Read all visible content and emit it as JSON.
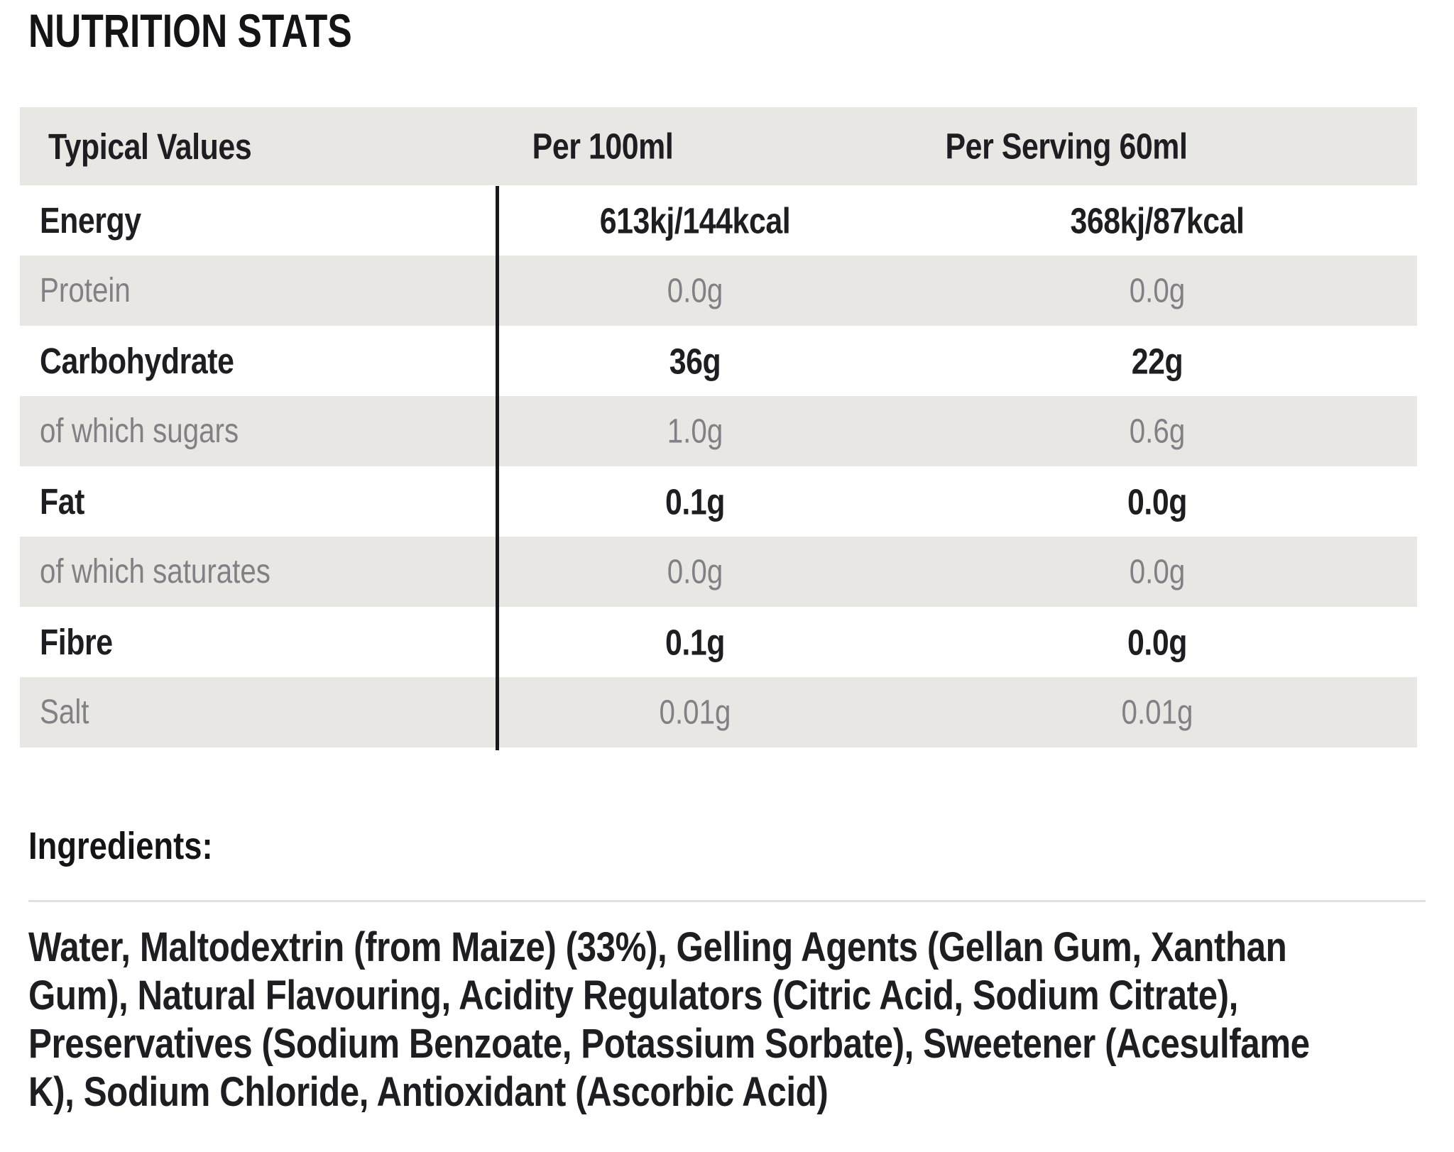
{
  "title": "NUTRITION STATS",
  "colors": {
    "text_dark": "#1e1e22",
    "text_muted": "#818185",
    "row_band": "#e9e7e4",
    "divider_line": "#19191c",
    "section_rule": "#e3e1de"
  },
  "table": {
    "headers": {
      "col1": "Typical Values",
      "col2": "Per 100ml",
      "col3": "Per Serving 60ml"
    },
    "rows": [
      {
        "label": "Energy",
        "per100": "613kj/144kcal",
        "perServing": "368kj/87kcal"
      },
      {
        "label": "Protein",
        "per100": "0.0g",
        "perServing": "0.0g"
      },
      {
        "label": "Carbohydrate",
        "per100": "36g",
        "perServing": "22g"
      },
      {
        "label": "of which sugars",
        "per100": "1.0g",
        "perServing": "0.6g"
      },
      {
        "label": "Fat",
        "per100": "0.1g",
        "perServing": "0.0g"
      },
      {
        "label": "of which saturates",
        "per100": "0.0g",
        "perServing": "0.0g"
      },
      {
        "label": "Fibre",
        "per100": "0.1g",
        "perServing": "0.0g"
      },
      {
        "label": "Salt",
        "per100": "0.01g",
        "perServing": "0.01g"
      }
    ]
  },
  "ingredients": {
    "heading": "Ingredients:",
    "text": "Water, Maltodextrin (from Maize) (33%), Gelling Agents (Gellan Gum, Xanthan Gum), Natural Flavouring, Acidity Regulators (Citric Acid, Sodium Citrate), Preservatives (Sodium Benzoate, Potassium Sorbate), Sweetener (Acesulfame K), Sodium Chloride, Antioxidant (Ascorbic Acid)",
    "lines": [
      "Water, Maltodextrin (from Maize) (33%), Gelling Agents (Gellan Gum, Xanthan",
      "Gum), Natural Flavouring, Acidity Regulators (Citric Acid, Sodium Citrate),",
      "Preservatives (Sodium Benzoate, Potassium Sorbate), Sweetener (Acesulfame",
      "K), Sodium Chloride, Antioxidant (Ascorbic Acid)"
    ]
  }
}
